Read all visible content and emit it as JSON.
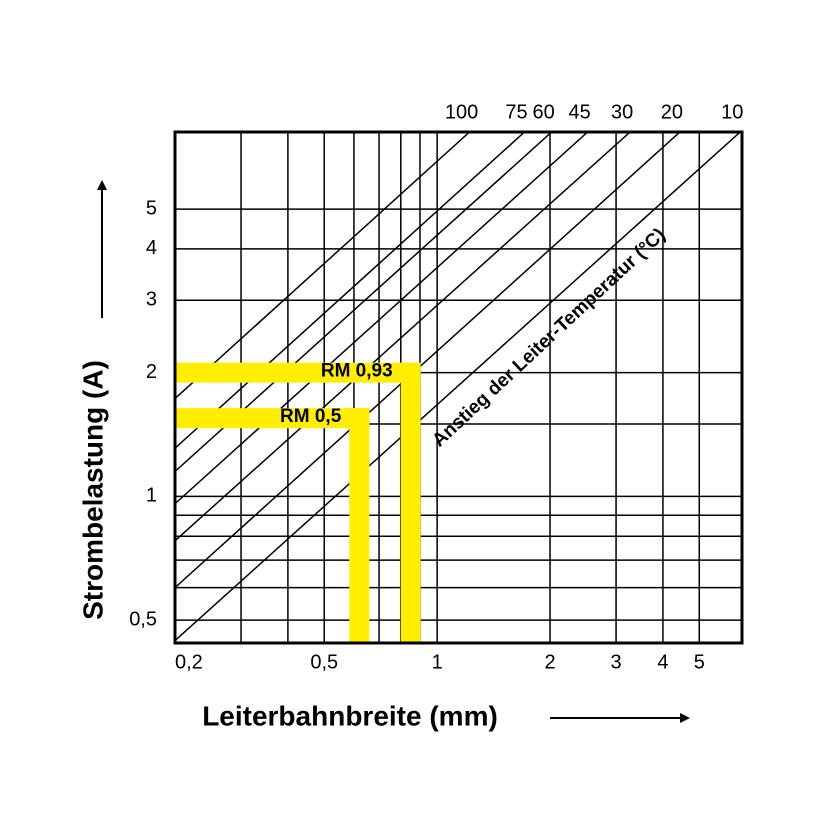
{
  "chart_data": {
    "type": "line",
    "xlabel": "Leiterbahnbreite (mm)",
    "ylabel": "Strombelastung (A)",
    "annotation": "Anstieg der Leiter-Temperatur (°C)",
    "log_x": true,
    "log_y": true,
    "grid": true,
    "xlim": [
      0.2,
      6.5
    ],
    "ylim": [
      0.44,
      7.7
    ],
    "xticks": [
      {
        "value": 0.2,
        "label": "0,2"
      },
      {
        "value": 0.5,
        "label": "0,5"
      },
      1,
      2,
      3,
      4,
      5
    ],
    "yticks": [
      {
        "value": 0.5,
        "label": "0,5"
      },
      1,
      2,
      3,
      4,
      5
    ],
    "x_minor_ticks": [
      0.3,
      0.4,
      0.6,
      0.7,
      0.8,
      0.9
    ],
    "y_minor_ticks": [
      0.6,
      0.7,
      0.8,
      0.9,
      1.5
    ],
    "series": [
      {
        "name": "100",
        "color": "#000000",
        "x": [
          0.2,
          1.22
        ],
        "values": [
          1.73,
          7.7
        ]
      },
      {
        "name": "75",
        "color": "#000000",
        "x": [
          0.2,
          1.71
        ],
        "values": [
          1.31,
          7.7
        ]
      },
      {
        "name": "60",
        "color": "#000000",
        "x": [
          0.2,
          2.02
        ],
        "values": [
          1.15,
          7.7
        ]
      },
      {
        "name": "45",
        "color": "#000000",
        "x": [
          0.2,
          2.52
        ],
        "values": [
          0.96,
          7.7
        ]
      },
      {
        "name": "30",
        "color": "#000000",
        "x": [
          0.2,
          3.27
        ],
        "values": [
          0.78,
          7.7
        ]
      },
      {
        "name": "20",
        "color": "#000000",
        "x": [
          0.2,
          4.44
        ],
        "values": [
          0.6,
          7.7
        ]
      },
      {
        "name": "10",
        "color": "#000000",
        "x": [
          0.2,
          6.43
        ],
        "values": [
          0.446,
          7.7
        ]
      }
    ],
    "highlights": [
      {
        "label": "RM 0,93",
        "x": 0.85,
        "y": 2.0,
        "color": "#ffee00"
      },
      {
        "label": "RM 0,5",
        "x": 0.62,
        "y": 1.55,
        "color": "#ffee00"
      }
    ]
  }
}
